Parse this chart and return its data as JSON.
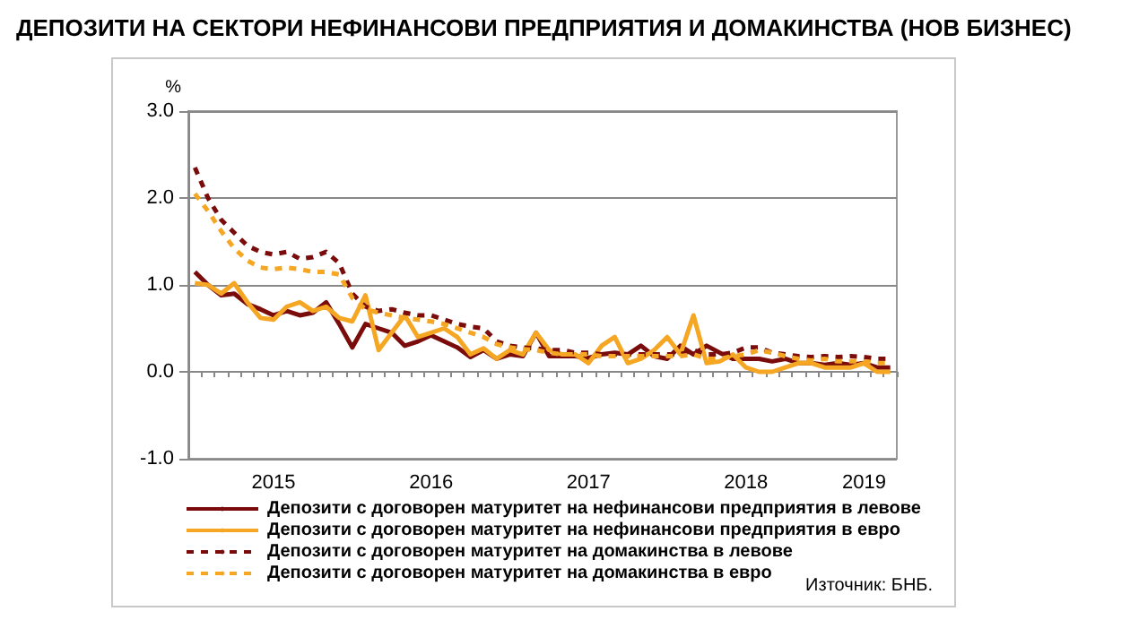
{
  "chart_data": {
    "type": "line",
    "title": "ДЕПОЗИТИ НА СЕКТОРИ НЕФИНАНСОВИ ПРЕДПРИЯТИЯ И ДОМАКИНСТВА (НОВ БИЗНЕС)",
    "ylabel": "%",
    "annotations": [
      "Източник: БНБ."
    ],
    "categories": [
      null,
      null,
      null,
      null,
      null,
      null,
      "2015",
      null,
      null,
      null,
      null,
      null,
      null,
      null,
      null,
      null,
      null,
      null,
      "2016",
      null,
      null,
      null,
      null,
      null,
      null,
      null,
      null,
      null,
      null,
      null,
      "2017",
      null,
      null,
      null,
      null,
      null,
      null,
      null,
      null,
      null,
      null,
      null,
      "2018",
      null,
      null,
      null,
      null,
      null,
      null,
      null,
      null,
      "2019",
      null,
      null
    ],
    "ylim": [
      -1,
      3
    ],
    "yticks": [
      {
        "value": -1,
        "label": "-1.0"
      },
      {
        "value": 0,
        "label": "0.0"
      },
      {
        "value": 1,
        "label": "1.0"
      },
      {
        "value": 2,
        "label": "2.0"
      },
      {
        "value": 3,
        "label": "3.0"
      }
    ],
    "grid": "y",
    "legend": "bottom",
    "marker": "none",
    "series": [
      {
        "name": "Депозити с договорен матуритет на нефинансови предприятия в левове",
        "color": "#7b0c0c",
        "line_style": "solid",
        "values": [
          1.15,
          1.0,
          0.88,
          0.9,
          0.78,
          0.72,
          0.65,
          0.7,
          0.65,
          0.68,
          0.8,
          0.55,
          0.28,
          0.55,
          0.5,
          0.45,
          0.3,
          0.35,
          0.42,
          0.35,
          0.28,
          0.17,
          0.25,
          0.15,
          0.2,
          0.18,
          0.45,
          0.18,
          0.18,
          0.18,
          0.16,
          0.2,
          0.22,
          0.2,
          0.3,
          0.18,
          0.15,
          0.3,
          0.2,
          0.3,
          0.22,
          0.15,
          0.15,
          0.15,
          0.12,
          0.15,
          0.1,
          0.1,
          0.08,
          0.1,
          0.08,
          0.1,
          0.05,
          0.05
        ]
      },
      {
        "name": "Депозити с договорен матуритет на нефинансови предприятия в евро",
        "color": "#f5a623",
        "line_style": "solid",
        "values": [
          1.02,
          1.0,
          0.9,
          1.02,
          0.8,
          0.62,
          0.6,
          0.75,
          0.8,
          0.7,
          0.75,
          0.62,
          0.58,
          0.88,
          0.25,
          0.45,
          0.65,
          0.4,
          0.45,
          0.5,
          0.4,
          0.2,
          0.27,
          0.15,
          0.25,
          0.2,
          0.45,
          0.25,
          0.2,
          0.2,
          0.1,
          0.3,
          0.4,
          0.1,
          0.15,
          0.25,
          0.4,
          0.2,
          0.65,
          0.1,
          0.12,
          0.2,
          0.05,
          0.0,
          0.0,
          0.05,
          0.1,
          0.1,
          0.05,
          0.05,
          0.05,
          0.1,
          0.0,
          0.0
        ]
      },
      {
        "name": "Депозити с договорен матуритет на домакинства в левове",
        "color": "#7b0c0c",
        "line_style": "dashed",
        "values": [
          2.35,
          2.0,
          1.75,
          1.6,
          1.45,
          1.38,
          1.35,
          1.38,
          1.3,
          1.32,
          1.38,
          1.25,
          0.9,
          0.75,
          0.7,
          0.72,
          0.68,
          0.65,
          0.65,
          0.6,
          0.55,
          0.52,
          0.5,
          0.35,
          0.3,
          0.28,
          0.27,
          0.25,
          0.25,
          0.22,
          0.22,
          0.2,
          0.2,
          0.2,
          0.2,
          0.2,
          0.2,
          0.2,
          0.25,
          0.2,
          0.2,
          0.22,
          0.28,
          0.28,
          0.22,
          0.2,
          0.18,
          0.17,
          0.18,
          0.17,
          0.18,
          0.17,
          0.15,
          0.15
        ]
      },
      {
        "name": "Депозити с договорен матуритет на домакинства в евро",
        "color": "#f5a623",
        "line_style": "dashed",
        "values": [
          2.05,
          1.85,
          1.62,
          1.42,
          1.28,
          1.2,
          1.18,
          1.2,
          1.18,
          1.15,
          1.15,
          1.12,
          0.85,
          0.72,
          0.68,
          0.65,
          0.62,
          0.6,
          0.58,
          0.55,
          0.5,
          0.45,
          0.4,
          0.32,
          0.28,
          0.26,
          0.25,
          0.22,
          0.2,
          0.2,
          0.2,
          0.18,
          0.18,
          0.18,
          0.18,
          0.18,
          0.18,
          0.18,
          0.2,
          0.15,
          0.15,
          0.18,
          0.2,
          0.25,
          0.22,
          0.18,
          0.15,
          0.13,
          0.15,
          0.12,
          0.12,
          0.12,
          0.1,
          0.1
        ]
      }
    ]
  }
}
